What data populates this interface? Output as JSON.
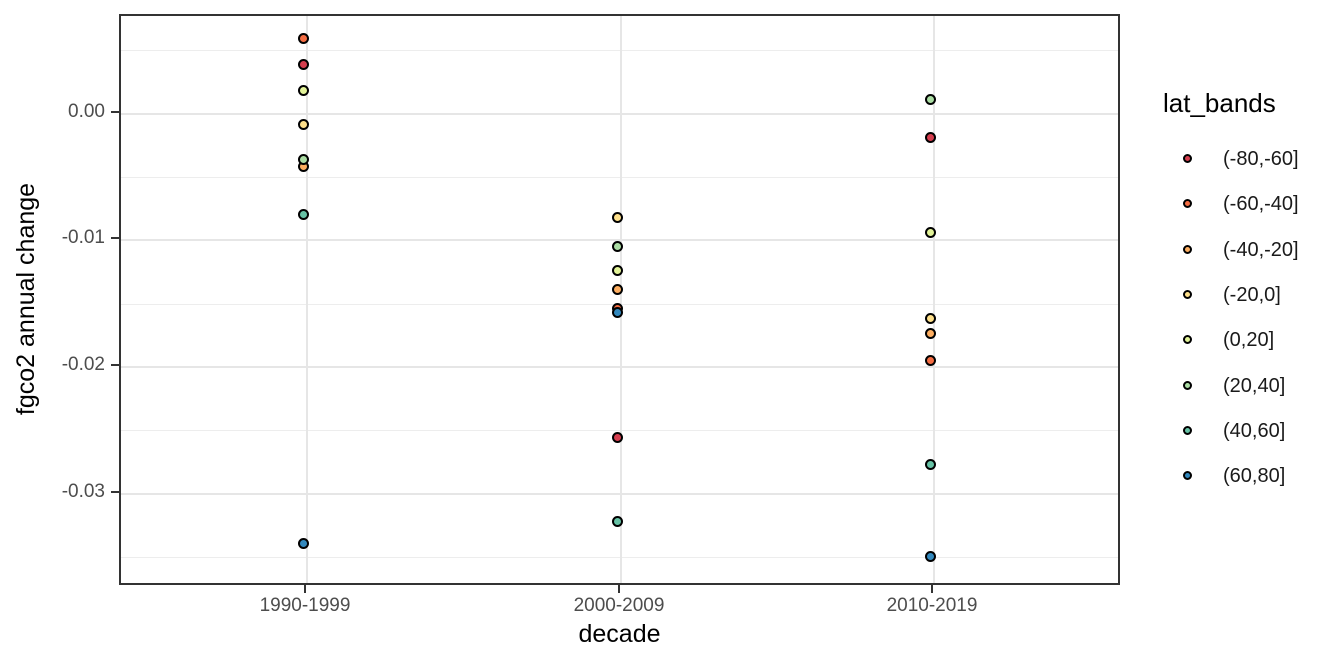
{
  "chart_data": {
    "type": "scatter",
    "title": "",
    "xlabel": "decade",
    "ylabel": "fgco2 annual change",
    "legend_title": "lat_bands",
    "legend_position": "right",
    "grid": true,
    "categories": [
      "1990-1999",
      "2000-2009",
      "2010-2019"
    ],
    "y_ticks": [
      {
        "label": "0.00",
        "value": 0.0
      },
      {
        "label": "-0.01",
        "value": -0.01
      },
      {
        "label": "-0.02",
        "value": -0.02
      },
      {
        "label": "-0.03",
        "value": -0.03
      }
    ],
    "y_minor_ticks": [
      0.005,
      -0.005,
      -0.015,
      -0.025,
      -0.035
    ],
    "ylim": [
      0.0077,
      -0.0373
    ],
    "series": [
      {
        "name": "(-80,-60]",
        "color": "#d53e4f",
        "values": [
          0.0036,
          -0.0259,
          -0.0022
        ]
      },
      {
        "name": "(-60,-40]",
        "color": "#f46d43",
        "values": [
          0.0056,
          -0.0157,
          -0.0198
        ]
      },
      {
        "name": "(-40,-20]",
        "color": "#fdae61",
        "values": [
          -0.0045,
          -0.0142,
          -0.0177
        ]
      },
      {
        "name": "(-20,0]",
        "color": "#fee08b",
        "values": [
          -0.0012,
          -0.0085,
          -0.0165
        ]
      },
      {
        "name": "(0,20]",
        "color": "#e2f398",
        "values": [
          0.0015,
          -0.0127,
          -0.0097
        ]
      },
      {
        "name": "(20,40]",
        "color": "#abdda4",
        "values": [
          -0.0039,
          -0.0108,
          0.0008
        ]
      },
      {
        "name": "(40,60]",
        "color": "#66c2a5",
        "values": [
          -0.0083,
          -0.0325,
          -0.028
        ]
      },
      {
        "name": "(60,80]",
        "color": "#3288bd",
        "values": [
          -0.0342,
          -0.016,
          -0.0353
        ]
      }
    ]
  }
}
